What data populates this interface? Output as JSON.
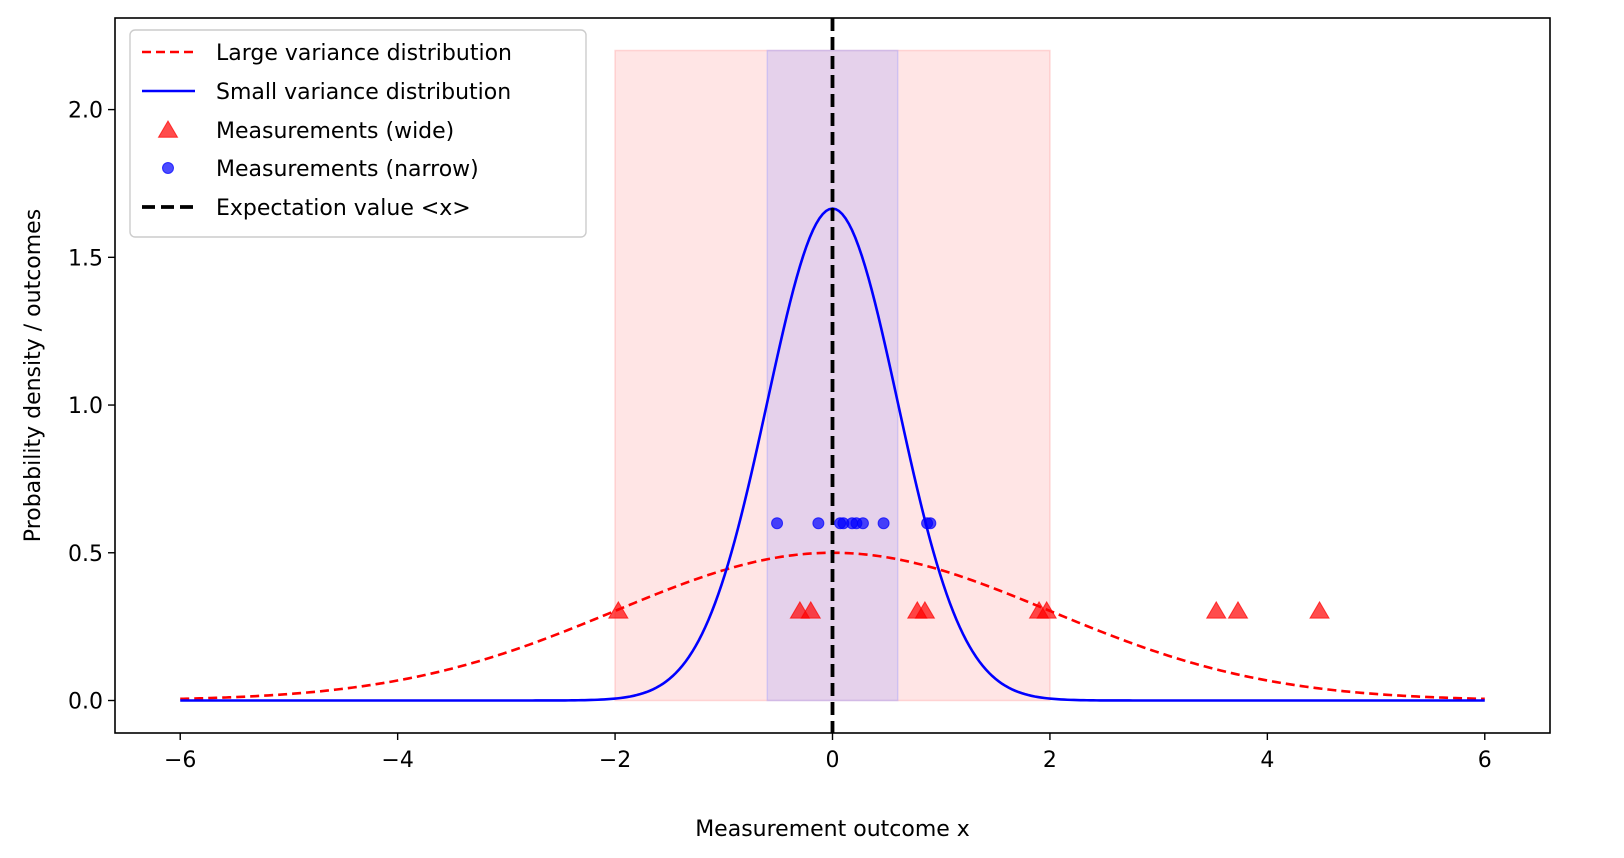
{
  "chart_data": {
    "type": "line",
    "xlabel": "Measurement outcome x",
    "ylabel": "Probability density / outcomes",
    "xlim": [
      -6.6,
      6.6
    ],
    "ylim": [
      -0.11,
      2.31
    ],
    "xticks": [
      -6,
      -4,
      -2,
      0,
      2,
      4,
      6
    ],
    "yticks": [
      0.0,
      0.5,
      1.0,
      1.5,
      2.0
    ],
    "xtick_labels": [
      "−6",
      "−4",
      "−2",
      "0",
      "2",
      "4",
      "6"
    ],
    "ytick_labels": [
      "0.0",
      "0.5",
      "1.0",
      "1.5",
      "2.0"
    ],
    "grid": false,
    "legend_position": "top-left",
    "series": [
      {
        "name": "Large variance distribution",
        "kind": "line",
        "style": "dashed",
        "color": "#ff0000",
        "distribution": "gaussian",
        "mean": 0,
        "sigma": 2,
        "amplitude": 0.5,
        "x_range": [
          -6,
          6
        ]
      },
      {
        "name": "Small variance distribution",
        "kind": "line",
        "style": "solid",
        "color": "#0000ff",
        "distribution": "gaussian",
        "mean": 0,
        "sigma": 0.6,
        "amplitude": 1.665,
        "x_range": [
          -6,
          6
        ]
      },
      {
        "name": "Measurements (wide)",
        "kind": "scatter",
        "marker": "triangle",
        "color": "#ff0000",
        "x": [
          -1.97,
          -0.3,
          -0.2,
          0.78,
          0.85,
          1.9,
          1.97,
          3.53,
          3.73,
          4.48
        ],
        "y": [
          0.3,
          0.3,
          0.3,
          0.3,
          0.3,
          0.3,
          0.3,
          0.3,
          0.3,
          0.3
        ]
      },
      {
        "name": "Measurements (narrow)",
        "kind": "scatter",
        "marker": "circle",
        "color": "#0000ff",
        "x": [
          -0.51,
          -0.13,
          0.07,
          0.1,
          0.18,
          0.22,
          0.28,
          0.47,
          0.87,
          0.9
        ],
        "y": [
          0.6,
          0.6,
          0.6,
          0.6,
          0.6,
          0.6,
          0.6,
          0.6,
          0.6,
          0.6
        ]
      },
      {
        "name": "Expectation value <x>",
        "kind": "vline",
        "style": "dashed",
        "color": "#000000",
        "x": 0
      }
    ],
    "shaded_regions": [
      {
        "x": [
          -2,
          2
        ],
        "y": [
          0,
          2.2
        ],
        "color": "#ff9999"
      },
      {
        "x": [
          -0.6,
          0.6
        ],
        "y": [
          0,
          2.2
        ],
        "color": "#9999ff"
      }
    ]
  }
}
